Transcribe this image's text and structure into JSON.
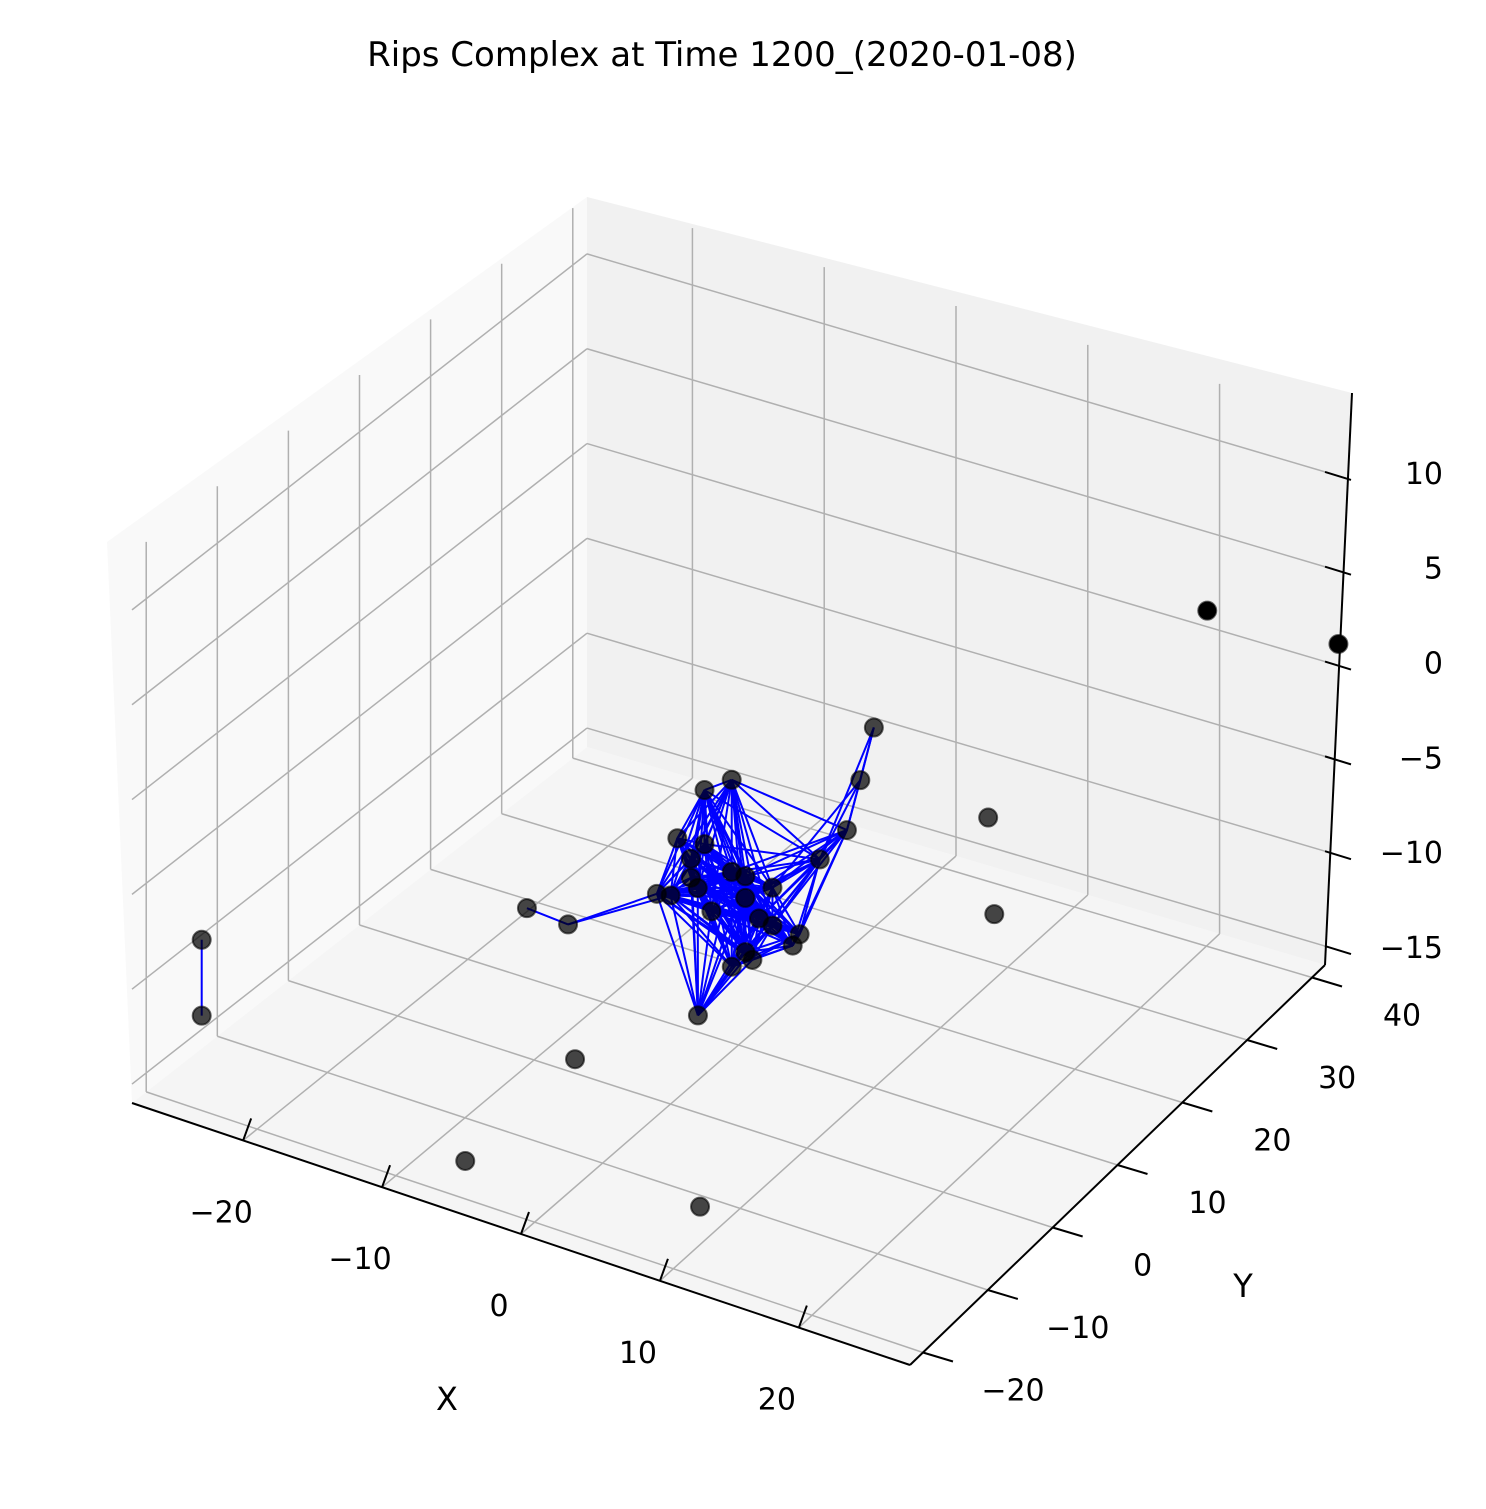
{
  "chart_data": {
    "type": "scatter",
    "subtype": "3d-scatter-with-edges",
    "title": "Rips Complex at Time 1200_(2020-01-08)",
    "xlabel": "X",
    "ylabel": "Y",
    "zlabel": "",
    "x_ticks": [
      "−20",
      "−10",
      "0",
      "10",
      "20"
    ],
    "y_ticks": [
      "−20",
      "−10",
      "0",
      "10",
      "20",
      "30",
      "40"
    ],
    "z_ticks": [
      "−15",
      "−10",
      "−5",
      "0",
      "5",
      "10"
    ],
    "xlim": [
      -28,
      28
    ],
    "ylim": [
      -22,
      42
    ],
    "zlim": [
      -16,
      13
    ],
    "grid": true,
    "colors": {
      "points": "#000000",
      "edges": "#0000ff",
      "grid": "#b0b0b0"
    },
    "points": [
      {
        "x": -24,
        "y": -20,
        "z": -11
      },
      {
        "x": -24,
        "y": -20,
        "z": -7
      },
      {
        "x": -5,
        "y": -20,
        "z": -14
      },
      {
        "x": -2,
        "y": -10,
        "z": -11
      },
      {
        "x": 10,
        "y": -16,
        "z": -14
      },
      {
        "x": -8,
        "y": -5,
        "z": -6
      },
      {
        "x": -6,
        "y": -3,
        "z": -7
      },
      {
        "x": -2,
        "y": 2,
        "z": -6
      },
      {
        "x": 3,
        "y": -2,
        "z": -10
      },
      {
        "x": 0,
        "y": 0,
        "z": -5
      },
      {
        "x": -2,
        "y": 5,
        "z": -4
      },
      {
        "x": 6,
        "y": 0,
        "z": -7
      },
      {
        "x": 0,
        "y": 5,
        "z": -1
      },
      {
        "x": 2,
        "y": 5,
        "z": 0
      },
      {
        "x": 1,
        "y": 3,
        "z": -3
      },
      {
        "x": 0,
        "y": 3,
        "z": -4
      },
      {
        "x": 3,
        "y": 3,
        "z": -4
      },
      {
        "x": 4,
        "y": 3,
        "z": -4
      },
      {
        "x": 0,
        "y": 3,
        "z": -5
      },
      {
        "x": 1,
        "y": 2,
        "z": -5
      },
      {
        "x": 5,
        "y": 5,
        "z": -5
      },
      {
        "x": 2,
        "y": 2,
        "z": -6
      },
      {
        "x": 5,
        "y": 3,
        "z": -6
      },
      {
        "x": 3,
        "y": 5,
        "z": -6
      },
      {
        "x": 7,
        "y": 5,
        "z": -7
      },
      {
        "x": 4,
        "y": 3,
        "z": -8
      },
      {
        "x": 5,
        "y": 8,
        "z": -9
      },
      {
        "x": 3,
        "y": 3,
        "z": -9
      },
      {
        "x": 5,
        "y": 5,
        "z": -7
      },
      {
        "x": 9,
        "y": 10,
        "z": 0
      },
      {
        "x": 9,
        "y": 8,
        "z": -2
      },
      {
        "x": 7,
        "y": 8,
        "z": -4
      },
      {
        "x": 10,
        "y": 10,
        "z": 3
      },
      {
        "x": 13,
        "y": 22,
        "z": -10
      },
      {
        "x": 16,
        "y": 15,
        "z": -2
      },
      {
        "x": 25,
        "y": 30,
        "z": 6
      },
      {
        "x": 30,
        "y": 40,
        "z": 2
      }
    ],
    "edge_count_note": ""
  }
}
